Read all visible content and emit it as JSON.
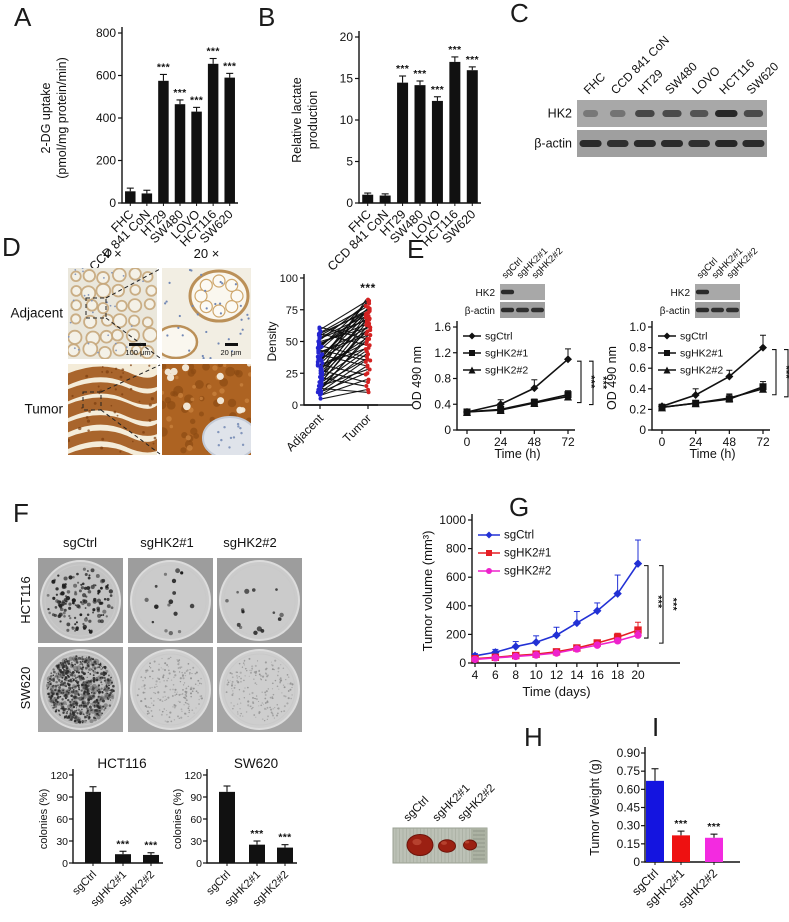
{
  "panel_labels": {
    "a": "A",
    "b": "B",
    "c": "C",
    "d": "D",
    "e": "E",
    "f": "F",
    "g": "G",
    "h": "H",
    "i": "I"
  },
  "chart_data": [
    {
      "id": "A",
      "type": "bar",
      "ylabel_lines": [
        "2-DG uptake",
        "(pmol/mg protein/min)"
      ],
      "ylim": [
        0,
        800
      ],
      "yticks": [
        0,
        200,
        400,
        600,
        800
      ],
      "ytick_labels": [
        "0",
        "200",
        "400",
        "600",
        "800"
      ],
      "categories": [
        "FHC",
        "CCD 841 CoN",
        "HT29",
        "SW480",
        "LOVO",
        "HCT116",
        "SW620"
      ],
      "values": [
        55,
        45,
        575,
        465,
        430,
        655,
        590
      ],
      "errors": [
        15,
        15,
        30,
        20,
        20,
        25,
        20
      ],
      "sig": [
        "",
        "",
        "***",
        "***",
        "***",
        "***",
        "***"
      ],
      "bar_color": "#111111"
    },
    {
      "id": "B",
      "type": "bar",
      "ylabel_lines": [
        "Relative lactate",
        "production"
      ],
      "ylim": [
        0,
        20
      ],
      "yticks": [
        0,
        5,
        10,
        15,
        20
      ],
      "ytick_labels": [
        "0",
        "5",
        "10",
        "15",
        "20"
      ],
      "categories": [
        "FHC",
        "CCD 841 CoN",
        "HT29",
        "SW480",
        "LOVO",
        "HCT116",
        "SW620"
      ],
      "values": [
        1.0,
        0.9,
        14.5,
        14.2,
        12.3,
        17.0,
        16.0
      ],
      "errors": [
        0.2,
        0.2,
        0.8,
        0.5,
        0.5,
        0.6,
        0.4
      ],
      "sig": [
        "",
        "",
        "***",
        "***",
        "***",
        "***",
        "***"
      ],
      "bar_color": "#111111"
    },
    {
      "id": "D_density",
      "type": "paired-scatter",
      "ylabel": "Density",
      "ylim": [
        0,
        100
      ],
      "yticks": [
        0,
        25,
        50,
        75,
        100
      ],
      "ytick_labels": [
        "0",
        "25",
        "50",
        "75",
        "100"
      ],
      "categories": [
        "Adjacent",
        "Tumor"
      ],
      "colors": [
        "#2424d0",
        "#d32222"
      ],
      "sig": "***",
      "pairs": [
        [
          10,
          34
        ],
        [
          12,
          55
        ],
        [
          15,
          28
        ],
        [
          18,
          62
        ],
        [
          22,
          45
        ],
        [
          25,
          70
        ],
        [
          30,
          52
        ],
        [
          35,
          65
        ],
        [
          40,
          72
        ],
        [
          45,
          78
        ],
        [
          50,
          61
        ],
        [
          55,
          75
        ],
        [
          60,
          82
        ],
        [
          8,
          20
        ],
        [
          14,
          40
        ],
        [
          20,
          58
        ],
        [
          28,
          66
        ],
        [
          33,
          48
        ],
        [
          38,
          71
        ],
        [
          42,
          55
        ],
        [
          48,
          68
        ],
        [
          52,
          80
        ],
        [
          57,
          73
        ],
        [
          5,
          12
        ],
        [
          9,
          30
        ],
        [
          16,
          50
        ],
        [
          24,
          63
        ],
        [
          31,
          44
        ],
        [
          36,
          59
        ],
        [
          44,
          76
        ],
        [
          49,
          64
        ],
        [
          54,
          70
        ],
        [
          58,
          77
        ],
        [
          11,
          25
        ],
        [
          19,
          42
        ],
        [
          26,
          56
        ],
        [
          34,
          69
        ],
        [
          41,
          61
        ],
        [
          47,
          74
        ],
        [
          53,
          67
        ],
        [
          13,
          10
        ],
        [
          27,
          18
        ],
        [
          39,
          31
        ],
        [
          46,
          38
        ],
        [
          21,
          15
        ],
        [
          32,
          24
        ],
        [
          43,
          35
        ],
        [
          56,
          47
        ],
        [
          61,
          52
        ],
        [
          37,
          81
        ],
        [
          29,
          83
        ],
        [
          17,
          36
        ]
      ]
    },
    {
      "id": "E_left",
      "type": "line",
      "ylabel": "OD 490 nm",
      "xlabel": "Time (h)",
      "x": [
        0,
        24,
        48,
        72
      ],
      "xtick_labels": [
        "0",
        "24",
        "48",
        "72"
      ],
      "ylim": [
        0,
        1.6
      ],
      "yticks": [
        0,
        0.4,
        0.8,
        1.2,
        1.6
      ],
      "ytick_labels": [
        "0",
        "0.4",
        "0.8",
        "1.2",
        "1.6"
      ],
      "series": [
        {
          "name": "sgCtrl",
          "marker": "diamond",
          "color": "#111111",
          "values": [
            0.28,
            0.4,
            0.65,
            1.1
          ],
          "errors": [
            0.03,
            0.07,
            0.13,
            0.16
          ]
        },
        {
          "name": "sgHK2#1",
          "marker": "square",
          "color": "#111111",
          "values": [
            0.28,
            0.32,
            0.43,
            0.55
          ],
          "errors": [
            0.02,
            0.03,
            0.05,
            0.06
          ]
        },
        {
          "name": "sgHK2#2",
          "marker": "triangle",
          "color": "#111111",
          "values": [
            0.28,
            0.31,
            0.42,
            0.52
          ],
          "errors": [
            0.02,
            0.03,
            0.04,
            0.05
          ]
        }
      ],
      "sig": [
        "***",
        "***"
      ]
    },
    {
      "id": "E_right",
      "type": "line",
      "ylabel": "OD 490 nm",
      "xlabel": "Time (h)",
      "x": [
        0,
        24,
        48,
        72
      ],
      "xtick_labels": [
        "0",
        "24",
        "48",
        "72"
      ],
      "ylim": [
        0,
        1.0
      ],
      "yticks": [
        0,
        0.2,
        0.4,
        0.6,
        0.8,
        1.0
      ],
      "ytick_labels": [
        "0",
        "0.2",
        "0.4",
        "0.6",
        "0.8",
        "1.0"
      ],
      "series": [
        {
          "name": "sgCtrl",
          "marker": "diamond",
          "color": "#111111",
          "values": [
            0.23,
            0.34,
            0.52,
            0.8
          ],
          "errors": [
            0.02,
            0.06,
            0.06,
            0.12
          ]
        },
        {
          "name": "sgHK2#1",
          "marker": "square",
          "color": "#111111",
          "values": [
            0.22,
            0.26,
            0.3,
            0.42
          ],
          "errors": [
            0.02,
            0.02,
            0.04,
            0.05
          ]
        },
        {
          "name": "sgHK2#2",
          "marker": "triangle",
          "color": "#111111",
          "values": [
            0.22,
            0.26,
            0.31,
            0.4
          ],
          "errors": [
            0.02,
            0.02,
            0.04,
            0.04
          ]
        }
      ],
      "sig": [
        "***",
        "***"
      ]
    },
    {
      "id": "F_HCT116",
      "type": "bar",
      "title": "HCT116",
      "ylabel_lines": [
        "colonies (%)"
      ],
      "ylim": [
        0,
        120
      ],
      "yticks": [
        0,
        30,
        60,
        90,
        120
      ],
      "ytick_labels": [
        "0",
        "30",
        "60",
        "90",
        "120"
      ],
      "categories": [
        "sgCtrl",
        "sgHK2#1",
        "sgHK2#2"
      ],
      "values": [
        97,
        12,
        11
      ],
      "errors": [
        7,
        4,
        3
      ],
      "sig": [
        "",
        "***",
        "***"
      ],
      "bar_color": "#111111"
    },
    {
      "id": "F_SW620",
      "type": "bar",
      "title": "SW620",
      "ylabel_lines": [
        "colonies (%)"
      ],
      "ylim": [
        0,
        120
      ],
      "yticks": [
        0,
        30,
        60,
        90,
        120
      ],
      "ytick_labels": [
        "0",
        "30",
        "60",
        "90",
        "120"
      ],
      "categories": [
        "sgCtrl",
        "sgHK2#1",
        "sgHK2#2"
      ],
      "values": [
        97,
        25,
        21
      ],
      "errors": [
        8,
        5,
        4
      ],
      "sig": [
        "",
        "***",
        "***"
      ],
      "bar_color": "#111111"
    },
    {
      "id": "G",
      "type": "line",
      "ylabel": "Tumor volume (mm³)",
      "xlabel": "Time (days)",
      "x": [
        4,
        6,
        8,
        10,
        12,
        14,
        16,
        18,
        20
      ],
      "xtick_labels": [
        "4",
        "6",
        "8",
        "10",
        "12",
        "14",
        "16",
        "18",
        "20"
      ],
      "ylim": [
        0,
        1000
      ],
      "yticks": [
        0,
        200,
        400,
        600,
        800,
        1000
      ],
      "ytick_labels": [
        "0",
        "200",
        "400",
        "600",
        "800",
        "1000"
      ],
      "series": [
        {
          "name": "sgCtrl",
          "marker": "diamond",
          "color": "#2231d5",
          "values": [
            50,
            75,
            115,
            145,
            195,
            280,
            365,
            485,
            695
          ],
          "errors": [
            15,
            20,
            35,
            45,
            55,
            80,
            55,
            130,
            165
          ]
        },
        {
          "name": "sgHK2#1",
          "marker": "square",
          "color": "#e51e25",
          "values": [
            30,
            40,
            52,
            62,
            78,
            105,
            140,
            180,
            230
          ],
          "errors": [
            5,
            6,
            8,
            10,
            12,
            15,
            20,
            28,
            55
          ]
        },
        {
          "name": "sgHK2#2",
          "marker": "circle",
          "color": "#ee22cc",
          "values": [
            25,
            36,
            46,
            56,
            70,
            98,
            125,
            155,
            195
          ],
          "errors": [
            4,
            5,
            7,
            8,
            10,
            12,
            15,
            20,
            30
          ]
        }
      ],
      "sig": [
        "***",
        "***"
      ]
    },
    {
      "id": "I",
      "type": "bar",
      "ylabel_lines": [
        "Tumor Weight (g)"
      ],
      "ylim": [
        0,
        0.9
      ],
      "yticks": [
        0,
        0.15,
        0.3,
        0.45,
        0.6,
        0.75,
        0.9
      ],
      "ytick_labels": [
        "0",
        "0.15",
        "0.30",
        "0.45",
        "0.60",
        "0.75",
        "0.90"
      ],
      "categories": [
        "sgCtrl",
        "sgHK2#1",
        "sgHK2#2"
      ],
      "values": [
        0.67,
        0.22,
        0.2
      ],
      "errors": [
        0.1,
        0.035,
        0.03
      ],
      "sig": [
        "",
        "***",
        "***"
      ],
      "bar_colors": [
        "#1414e0",
        "#ee1111",
        "#f32ae0"
      ]
    }
  ],
  "western_blot_C": {
    "lanes": [
      "FHC",
      "CCD 841 CoN",
      "HT29",
      "SW480",
      "LOVO",
      "HCT116",
      "SW620"
    ],
    "rows": [
      {
        "label": "HK2",
        "bands": [
          0.12,
          0.18,
          0.62,
          0.58,
          0.5,
          0.95,
          0.6
        ]
      },
      {
        "label": "β-actin",
        "bands": [
          0.9,
          0.85,
          0.9,
          0.9,
          0.85,
          0.95,
          0.9
        ]
      }
    ]
  },
  "western_blot_E": {
    "lanes": [
      "sgCtrl",
      "sgHK2#1",
      "sgHK2#2"
    ],
    "rows": [
      {
        "label": "HK2",
        "bands": [
          0.9,
          0,
          0
        ]
      },
      {
        "label": "β-actin",
        "bands": [
          0.9,
          0.85,
          0.85
        ]
      }
    ]
  },
  "panel_D": {
    "col_headers": [
      "4 ×",
      "20 ×"
    ],
    "row_labels": [
      "Adjacent",
      "Tumor"
    ],
    "scale_bars": [
      "100 μm",
      "20 μm"
    ]
  },
  "panel_F": {
    "col_headers": [
      "sgCtrl",
      "sgHK2#1",
      "sgHK2#2"
    ],
    "row_labels": [
      "HCT116",
      "SW620"
    ],
    "colony_density": [
      [
        "dense",
        "sparse",
        "sparse"
      ],
      [
        "very-dense",
        "sparse-faint",
        "sparse-faint"
      ]
    ]
  },
  "panel_H": {
    "labels": [
      "sgCtrl",
      "sgHK2#1",
      "sgHK2#2"
    ]
  }
}
